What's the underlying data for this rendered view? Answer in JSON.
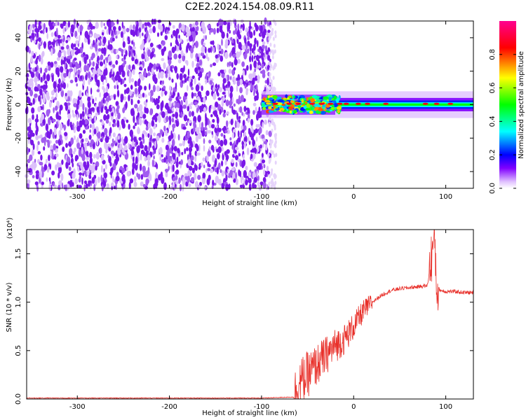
{
  "title": "C2E2.2024.154.08.09.R11",
  "chart_data": [
    {
      "type": "heatmap",
      "xlabel": "Height of straight line (km)",
      "ylabel": "Frequency (Hz)",
      "xlim": [
        -355,
        130
      ],
      "ylim": [
        -50,
        50
      ],
      "xticks": [
        -300,
        -200,
        -100,
        0,
        100
      ],
      "yticks": [
        -40,
        -20,
        0,
        20,
        40
      ],
      "colorbar": {
        "label": "Normalized spectral amplitude",
        "range": [
          0,
          1
        ],
        "ticks": [
          "0.0",
          "0.2",
          "0.4",
          "0.6",
          "0.8"
        ],
        "tick_values": [
          0,
          0.2,
          0.4,
          0.6,
          0.8
        ],
        "colormap": [
          "#ffffff",
          "#e8c8ff",
          "#8000ff",
          "#0000ff",
          "#00ffff",
          "#00ff00",
          "#ffff00",
          "#ff0000",
          "#ff00a0"
        ]
      },
      "regions": [
        {
          "name": "noise",
          "x_range": [
            -355,
            -90
          ],
          "freq_range": [
            -50,
            50
          ],
          "amplitude": [
            0.0,
            0.08
          ]
        },
        {
          "name": "transition",
          "x_range": [
            -100,
            -20
          ],
          "freq_center": 0,
          "freq_halfwidth": 6,
          "amplitude": [
            0.2,
            0.9
          ]
        },
        {
          "name": "carrier",
          "x_range": [
            -20,
            130
          ],
          "freq_center": 0,
          "freq_halfwidth": 3,
          "amplitude": [
            0.3,
            0.95
          ]
        }
      ],
      "grid": false
    },
    {
      "type": "line",
      "xlabel": "Height of straight line (km)",
      "ylabel": "SNR (10 * v/v)",
      "y_multiplier": "(x10⁴)",
      "xlim": [
        -355,
        130
      ],
      "ylim": [
        0,
        1.75
      ],
      "xticks": [
        -300,
        -200,
        -100,
        0,
        100
      ],
      "yticks": [
        "0.0",
        "0.5",
        "1.0",
        "1.5"
      ],
      "ytick_values": [
        0,
        0.5,
        1.0,
        1.5
      ],
      "series": [
        {
          "color": "#e8302a",
          "x": [
            -355,
            -300,
            -200,
            -100,
            -65,
            -60,
            -50,
            -40,
            -30,
            -20,
            -10,
            0,
            10,
            20,
            30,
            40,
            50,
            60,
            70,
            80,
            85,
            88,
            90,
            95,
            100,
            110,
            120,
            130
          ],
          "y": [
            0.01,
            0.01,
            0.01,
            0.01,
            0.02,
            0.15,
            0.25,
            0.35,
            0.45,
            0.55,
            0.62,
            0.75,
            0.9,
            1.0,
            1.07,
            1.12,
            1.14,
            1.15,
            1.16,
            1.17,
            1.5,
            1.7,
            1.15,
            1.12,
            1.11,
            1.11,
            1.1,
            1.1
          ]
        }
      ],
      "grid": false
    }
  ]
}
